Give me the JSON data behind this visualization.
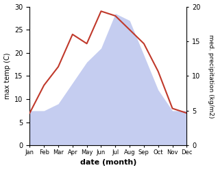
{
  "months": [
    "Jan",
    "Feb",
    "Mar",
    "Apr",
    "May",
    "Jun",
    "Jul",
    "Aug",
    "Sep",
    "Oct",
    "Nov",
    "Dec"
  ],
  "temperature": [
    7,
    13,
    17,
    24,
    22,
    29,
    28,
    25,
    22,
    16,
    8,
    7
  ],
  "precipitation": [
    5,
    5,
    6,
    9,
    12,
    14,
    19,
    18,
    13,
    8,
    5,
    5
  ],
  "temp_color": "#c0392b",
  "precip_fill_color": "#c5cdf0",
  "temp_ylim": [
    0,
    30
  ],
  "precip_ylim": [
    0,
    20
  ],
  "ylabel_left": "max temp (C)",
  "ylabel_right": "med. precipitation (kg/m2)",
  "xlabel": "date (month)"
}
